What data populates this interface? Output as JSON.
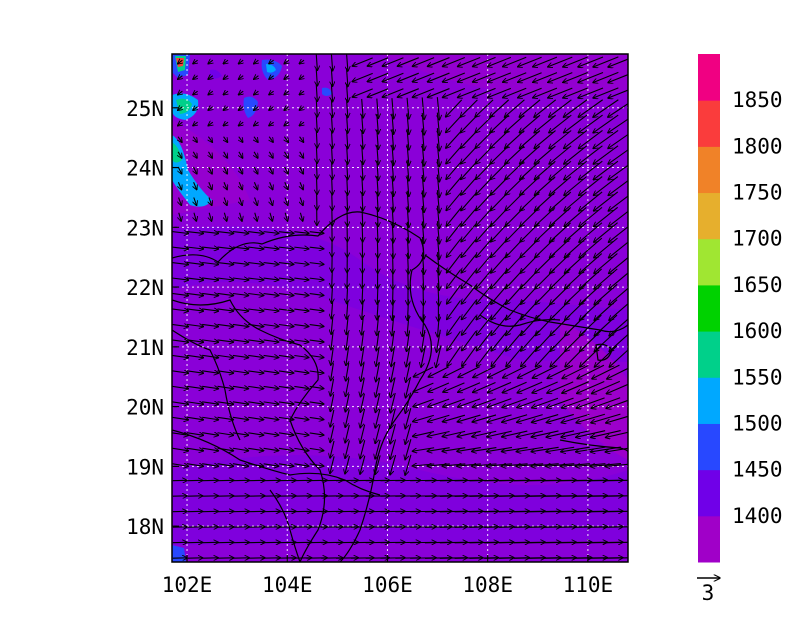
{
  "map": {
    "lon_range": [
      101.7,
      110.8
    ],
    "lat_range": [
      17.4,
      25.9
    ],
    "x_ticks": [
      "102E",
      "104E",
      "106E",
      "108E",
      "110E"
    ],
    "x_tick_values": [
      102,
      104,
      106,
      108,
      110
    ],
    "y_ticks": [
      "18N",
      "19N",
      "20N",
      "21N",
      "22N",
      "23N",
      "24N",
      "25N"
    ],
    "y_tick_values": [
      18,
      19,
      20,
      21,
      22,
      23,
      24,
      25
    ],
    "background_color": "#8a00d8",
    "gridlines": "dotted-white",
    "vector_field": "wind-arrows"
  },
  "colorbar": {
    "labels": [
      "1400",
      "1450",
      "1500",
      "1550",
      "1600",
      "1650",
      "1700",
      "1750",
      "1800",
      "1850"
    ],
    "colors": [
      "#a000c8",
      "#7000e8",
      "#2848ff",
      "#00a8ff",
      "#00d08a",
      "#00d200",
      "#a0e632",
      "#e6af2d",
      "#f08228",
      "#fa3c3c",
      "#f00082"
    ],
    "vector_ref_label": "3"
  }
}
